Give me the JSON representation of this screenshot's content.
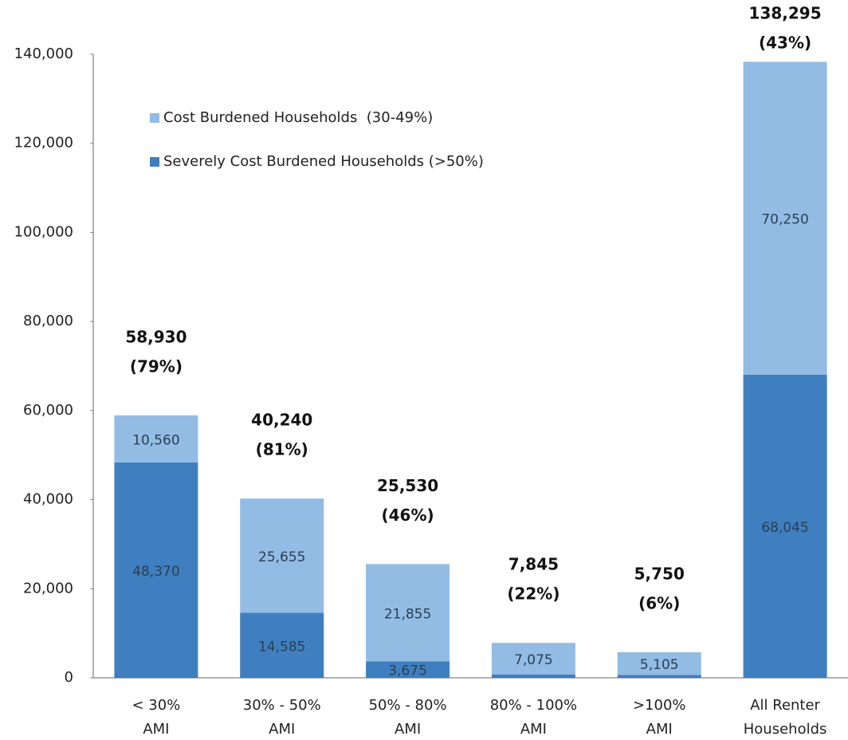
{
  "chart_data": {
    "type": "stacked-bar",
    "categories": [
      [
        "< 30%",
        "AMI"
      ],
      [
        "30% - 50%",
        "AMI"
      ],
      [
        "50% - 80%",
        "AMI"
      ],
      [
        "80% - 100%",
        "AMI"
      ],
      [
        ">100%",
        "AMI"
      ],
      [
        "All Renter",
        "Households"
      ]
    ],
    "series": [
      {
        "name": "Severely Cost Burdened Households (>50%)",
        "color": "#3f7fbf",
        "values": [
          48370,
          14585,
          3675,
          770,
          645,
          68045
        ],
        "value_labels": [
          "48,370",
          "14,585",
          "3,675",
          null,
          null,
          "68,045"
        ]
      },
      {
        "name": "Cost Burdened Households  (30-49%)",
        "color": "#92bce3",
        "values": [
          10560,
          25655,
          21855,
          7075,
          5105,
          70250
        ],
        "value_labels": [
          "10,560",
          "25,655",
          "21,855",
          "7,075",
          "5,105",
          "70,250"
        ]
      }
    ],
    "totals": {
      "values": [
        58930,
        40240,
        25530,
        7845,
        5750,
        138295
      ],
      "value_labels": [
        "58,930",
        "40,240",
        "25,530",
        "7,845",
        "5,750",
        "138,295"
      ],
      "percent_labels": [
        "(79%)",
        "(81%)",
        "(46%)",
        "(22%)",
        "(6%)",
        "(43%)"
      ]
    },
    "ylim": [
      0,
      140000
    ],
    "yticks": [
      0,
      {
        "value": 20000,
        "label": "20,000"
      },
      {
        "value": 40000,
        "label": "40,000"
      },
      {
        "value": 60000,
        "label": "60,000"
      },
      {
        "value": 80000,
        "label": "80,000"
      },
      {
        "value": 100000,
        "label": "100,000"
      },
      {
        "value": 120000,
        "label": "120,000"
      },
      {
        "value": 140000,
        "label": "140,000"
      }
    ],
    "legend": "upper left"
  }
}
